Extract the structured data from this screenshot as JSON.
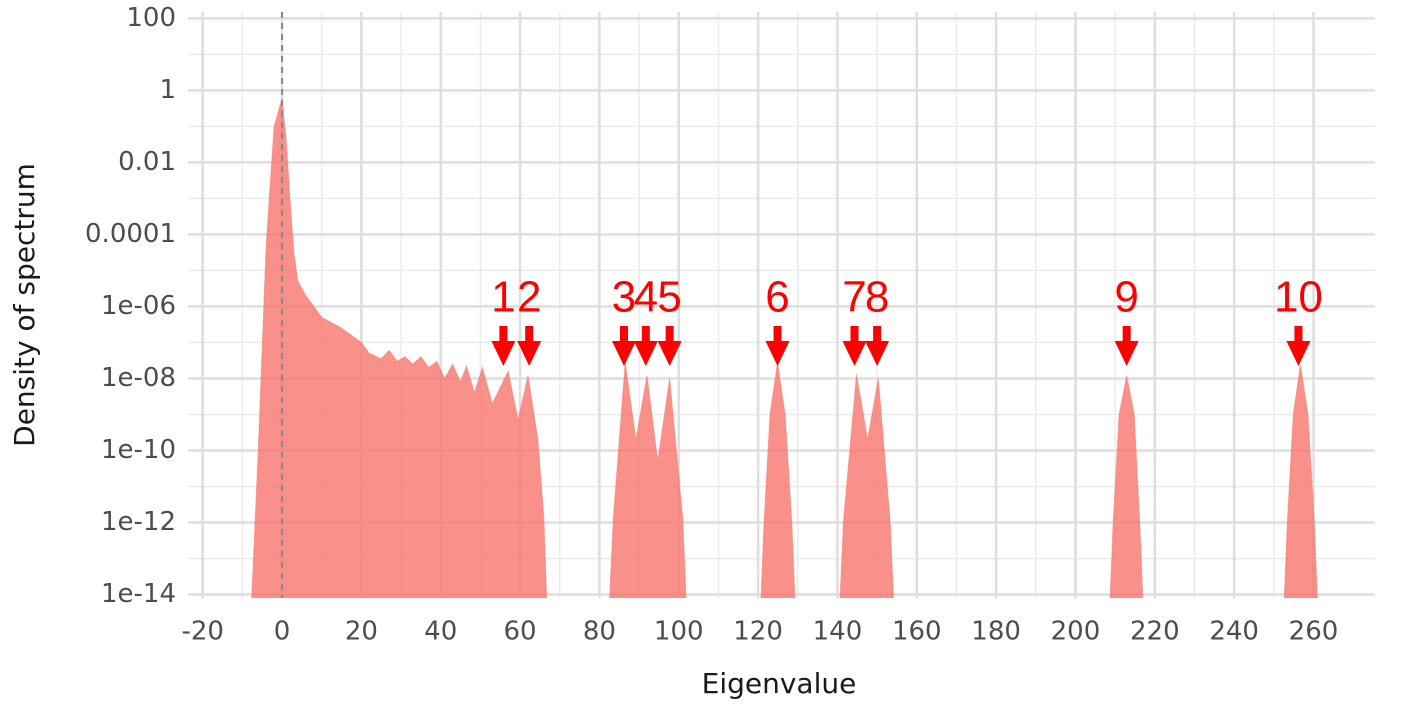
{
  "chart_data": {
    "type": "area",
    "xlabel": "Eigenvalue",
    "ylabel": "Density of spectrum",
    "log_y": true,
    "grid": true,
    "color": "#F8766D",
    "vline": 0,
    "xlim": [
      -23.7,
      275.5
    ],
    "ylim": [
      8e-15,
      150
    ],
    "xticks": [
      -20,
      0,
      20,
      40,
      60,
      80,
      100,
      120,
      140,
      160,
      180,
      200,
      220,
      240,
      260
    ],
    "yticks": [
      100,
      1,
      0.01,
      0.0001,
      {
        "value": 1e-06,
        "label": "1e-06"
      },
      {
        "value": 1e-08,
        "label": "1e-08"
      },
      {
        "value": 1e-10,
        "label": "1e-10"
      },
      {
        "value": 1e-12,
        "label": "1e-12"
      },
      {
        "value": 1e-14,
        "label": "1e-14"
      }
    ],
    "x": [
      -8,
      -6,
      -4,
      -2,
      0,
      1,
      2,
      3,
      4,
      6,
      10,
      15,
      20,
      22,
      25,
      27,
      29,
      31,
      33,
      35,
      37,
      39,
      41,
      43,
      45,
      46.5,
      48.5,
      50.5,
      53,
      57,
      59.5,
      62,
      64.5,
      66,
      67,
      75,
      82.2,
      83.5,
      86.5,
      89.2,
      92,
      94.7,
      97.7,
      101,
      102.2,
      110,
      120.4,
      121.5,
      123,
      124.9,
      126.8,
      128.5,
      129.6,
      135,
      140.3,
      141.5,
      144.8,
      147.6,
      150.3,
      153.3,
      154.5,
      180,
      208.4,
      209.5,
      211,
      212.9,
      214.8,
      216.2,
      217.3,
      235,
      252.3,
      253.4,
      254.9,
      256.7,
      258.6,
      260.2,
      261.3
    ],
    "values": [
      1e-15,
      1e-10,
      5e-05,
      0.1,
      0.6,
      0.05,
      0.001,
      3e-05,
      5e-06,
      2e-06,
      5e-07,
      2.5e-07,
      1e-07,
      5e-08,
      3.5e-08,
      6e-08,
      3e-08,
      4e-08,
      2.5e-08,
      4e-08,
      2e-08,
      3e-08,
      1e-08,
      2.5e-08,
      8e-09,
      2.2e-08,
      4e-09,
      2e-08,
      2e-09,
      1.6e-08,
      7e-10,
      1.2e-08,
      2e-10,
      1.3e-12,
      1e-15,
      null,
      1e-15,
      1.3e-12,
      2.8e-08,
      2e-10,
      1.2e-08,
      5e-11,
      1e-08,
      1.3e-12,
      1e-15,
      null,
      1e-15,
      1e-12,
      1e-09,
      2.8e-08,
      1e-09,
      1e-12,
      1e-15,
      null,
      1e-15,
      1e-12,
      1.3e-08,
      2e-10,
      1e-08,
      1e-12,
      1e-15,
      null,
      1e-15,
      1e-12,
      1e-09,
      1.2e-08,
      1e-09,
      1e-12,
      1e-15,
      null,
      1e-15,
      1e-12,
      1e-09,
      2.4e-08,
      1e-09,
      1e-12,
      1e-15
    ],
    "annotation_color": "#ff0000",
    "annotations": [
      {
        "text": "1",
        "x": 55.8
      },
      {
        "text": "2",
        "x": 62.3
      },
      {
        "text": "3",
        "x": 86.2
      },
      {
        "text": "4",
        "x": 91.7
      },
      {
        "text": "5",
        "x": 97.7
      },
      {
        "text": "6",
        "x": 124.9
      },
      {
        "text": "7",
        "x": 144.3
      },
      {
        "text": "8",
        "x": 150
      },
      {
        "text": "9",
        "x": 212.9
      },
      {
        "text": "10",
        "x": 256.2
      }
    ]
  }
}
